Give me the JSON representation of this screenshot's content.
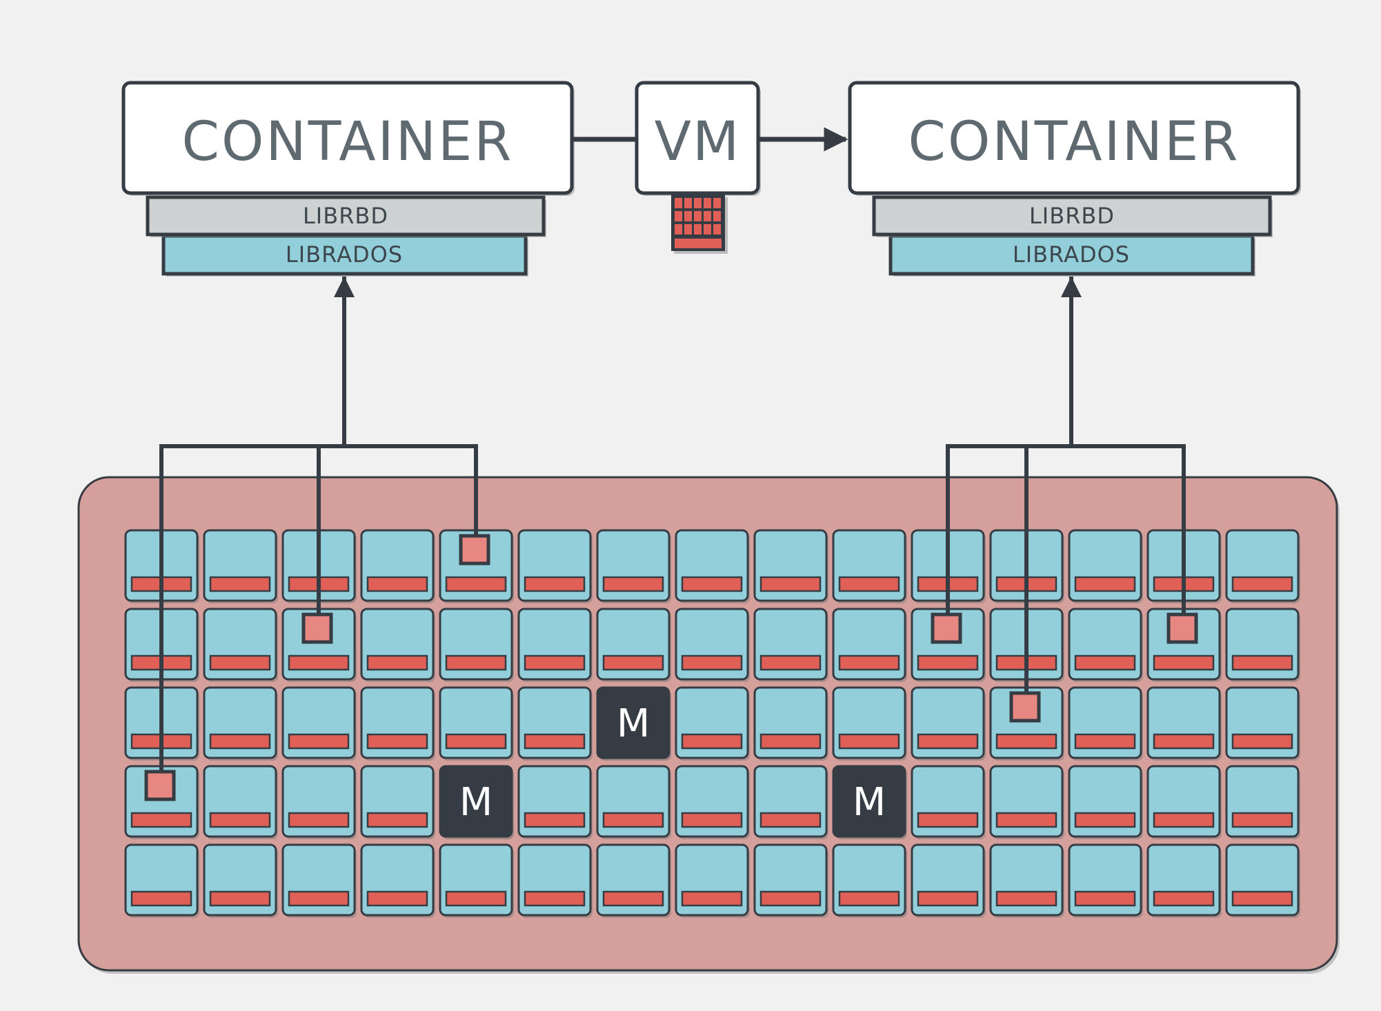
{
  "colors": {
    "background": "#f1f1f1",
    "outline": "#353c43",
    "label_text": "#5f6a70",
    "cluster_fill": "#d59f9b",
    "osd_fill": "#93cfda",
    "accent_red": "#e06058",
    "object_fill": "#e68782",
    "librbd_fill": "#cdd1d2",
    "librados_fill": "#93cfda",
    "monitor_fill": "#353c43",
    "monitor_text": "#ffffff",
    "box_fill": "#ffffff"
  },
  "client_left": {
    "container_label": "CONTAINER",
    "librbd_label": "LIBRBD",
    "librados_label": "LIBRADOS"
  },
  "vm": {
    "label": "VM",
    "disk_icon": "block-device-icon"
  },
  "client_right": {
    "container_label": "CONTAINER",
    "librbd_label": "LIBRBD",
    "librados_label": "LIBRADOS"
  },
  "cluster": {
    "rows": 5,
    "columns": 15,
    "monitor_label": "M",
    "monitors": [
      {
        "row": 2,
        "col": 6
      },
      {
        "row": 3,
        "col": 4
      },
      {
        "row": 3,
        "col": 9
      }
    ],
    "objects_left": [
      {
        "row": 3,
        "col": 0
      },
      {
        "row": 1,
        "col": 2
      },
      {
        "row": 0,
        "col": 4
      }
    ],
    "objects_right": [
      {
        "row": 1,
        "col": 10
      },
      {
        "row": 2,
        "col": 11
      },
      {
        "row": 1,
        "col": 13
      }
    ]
  }
}
